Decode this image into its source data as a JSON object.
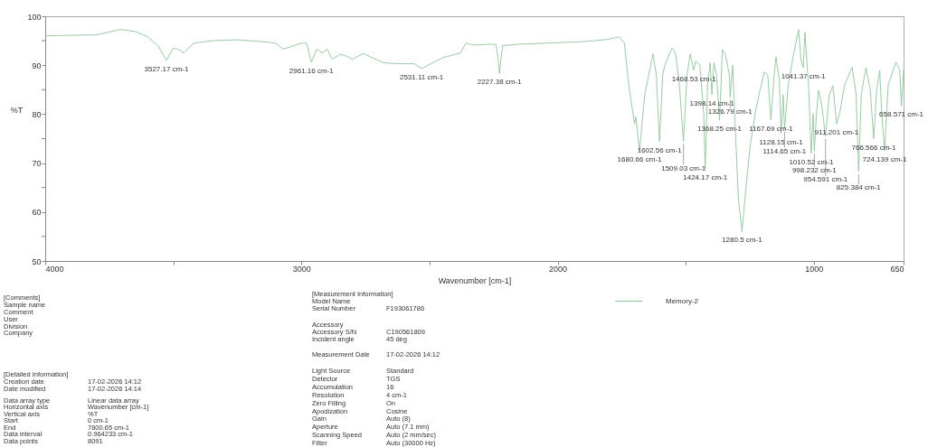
{
  "chart_data": {
    "type": "line",
    "xlabel": "Wavenumber [cm-1]",
    "ylabel": "%T",
    "xlim": [
      4000,
      650
    ],
    "xticks": [
      4000,
      {
        "value": 3500,
        "label": null
      },
      3000,
      {
        "value": 2500,
        "label": null
      },
      2000,
      {
        "value": 1500,
        "label": null
      },
      1000,
      650
    ],
    "ylim": [
      50,
      100
    ],
    "yticks": [
      50,
      {
        "value": 55,
        "label": null
      },
      60,
      {
        "value": 65,
        "label": null
      },
      70,
      {
        "value": 75,
        "label": null
      },
      80,
      {
        "value": 85,
        "label": null
      },
      90,
      {
        "value": 95,
        "label": null
      },
      100
    ],
    "grid": false,
    "legend": "bottom",
    "marker": "none",
    "line_style": "solid",
    "series": [
      {
        "name": "Memory-2",
        "color": "#8fc49a",
        "x": [
          4000,
          3900,
          3800,
          3750,
          3707,
          3650,
          3600,
          3560,
          3527.17,
          3500,
          3480,
          3460,
          3420,
          3350,
          3250,
          3150,
          3100,
          3071,
          3000,
          2980,
          2961.16,
          2940,
          2920,
          2900,
          2880,
          2850,
          2830,
          2800,
          2760,
          2680,
          2620,
          2560,
          2531.11,
          2450,
          2380,
          2358,
          2330,
          2260,
          2240,
          2232,
          2227.38,
          2222,
          2215,
          2150,
          2000,
          1900,
          1800,
          1760,
          1740,
          1720,
          1700,
          1695,
          1680.66,
          1660,
          1628,
          1615,
          1602.56,
          1590,
          1582,
          1554,
          1540,
          1525,
          1509.03,
          1495,
          1483,
          1468.53,
          1462,
          1445,
          1430,
          1424.17,
          1415,
          1405,
          1398.14,
          1390,
          1380,
          1368.25,
          1357,
          1345,
          1330,
          1326.79,
          1317,
          1305,
          1295,
          1280.5,
          1265,
          1250,
          1230,
          1210,
          1194,
          1180,
          1167.69,
          1155,
          1148,
          1135,
          1128.15,
          1120,
          1114.65,
          1100,
          1080,
          1060,
          1050,
          1041.37,
          1035,
          1020,
          1010.52,
          1003,
          998.232,
          990,
          982,
          970,
          954.591,
          940,
          926,
          911.201,
          900,
          880,
          851,
          835,
          825.384,
          815,
          797,
          780,
          766.566,
          755,
          743,
          735,
          724.139,
          710,
          680,
          665,
          658.571,
          650
        ],
        "values": [
          96,
          96.1,
          96.2,
          96.8,
          97.3,
          96.9,
          95.8,
          94,
          91,
          93.5,
          93.2,
          92.5,
          94.5,
          95,
          95.2,
          94.8,
          94.5,
          93.3,
          94.5,
          94.5,
          90.6,
          93.3,
          92.5,
          93.3,
          91.2,
          92.2,
          92,
          91.2,
          92.4,
          90.5,
          90.3,
          90.3,
          89.3,
          91.5,
          92.5,
          94.5,
          94.1,
          94.3,
          94.2,
          91,
          88.3,
          91,
          94,
          94.3,
          94.6,
          94.8,
          95.3,
          95.8,
          94.5,
          85,
          78,
          79.5,
          72.5,
          84,
          92.3,
          88,
          74.4,
          88,
          90,
          93.5,
          92.5,
          86,
          74.5,
          88,
          92.3,
          89,
          90.8,
          90,
          80,
          68.8,
          86,
          90.5,
          84,
          90.5,
          88,
          78.8,
          93.2,
          92,
          88,
          83.5,
          90,
          75,
          63,
          56,
          65,
          73,
          80,
          85,
          88.6,
          88,
          78.8,
          88,
          91.7,
          87,
          76,
          84,
          77,
          86,
          92,
          97.3,
          91,
          89.5,
          96.7,
          85,
          72,
          80,
          72.5,
          80,
          84.9,
          82,
          75.5,
          84,
          85.8,
          78,
          80,
          86,
          89.6,
          84,
          68.3,
          84,
          89.5,
          85,
          75,
          85,
          88.9,
          80,
          72.5,
          86,
          90.6,
          89,
          81.7,
          89
        ]
      }
    ],
    "annotations": [
      {
        "text": "3527.17 cm-1",
        "x": 3527.17,
        "y": 91
      },
      {
        "text": "2961.16 cm-1",
        "x": 2961.16,
        "y": 90.6
      },
      {
        "text": "2531.11 cm-1",
        "x": 2531.11,
        "y": 89.3
      },
      {
        "text": "2227.38 cm-1",
        "x": 2227.38,
        "y": 88.3
      },
      {
        "text": "1680.66 cm-1",
        "x": 1680.66,
        "y": 72.5
      },
      {
        "text": "1602.56 cm-1",
        "x": 1602.56,
        "y": 74.4
      },
      {
        "text": "1509.03 cm-1",
        "x": 1509.03,
        "y": 74.5
      },
      {
        "text": "1468.53 cm-1",
        "x": 1468.53,
        "y": 89
      },
      {
        "text": "1424.17 cm-1",
        "x": 1424.17,
        "y": 68.8
      },
      {
        "text": "1398.14 cm-1",
        "x": 1398.14,
        "y": 84
      },
      {
        "text": "1368.25 cm-1",
        "x": 1368.25,
        "y": 78.8
      },
      {
        "text": "1326.79 cm-1",
        "x": 1326.79,
        "y": 83.5
      },
      {
        "text": "1280.5 cm-1",
        "x": 1280.5,
        "y": 56
      },
      {
        "text": "1167.69 cm-1",
        "x": 1167.69,
        "y": 78.8
      },
      {
        "text": "1128.15 cm-1",
        "x": 1128.15,
        "y": 76
      },
      {
        "text": "1114.65 cm-1",
        "x": 1114.65,
        "y": 77
      },
      {
        "text": "1041.37 cm-1",
        "x": 1041.37,
        "y": 89.5
      },
      {
        "text": "1010.52 cm-1",
        "x": 1010.52,
        "y": 72
      },
      {
        "text": "998.232 cm-1",
        "x": 998.232,
        "y": 72.5
      },
      {
        "text": "954.591 cm-1",
        "x": 954.591,
        "y": 75.5
      },
      {
        "text": "911.201 cm-1",
        "x": 911.201,
        "y": 78
      },
      {
        "text": "825.384 cm-1",
        "x": 825.384,
        "y": 68.3
      },
      {
        "text": "766.566 cm-1",
        "x": 766.566,
        "y": 75
      },
      {
        "text": "724.139 cm-1",
        "x": 724.139,
        "y": 72.5
      },
      {
        "text": "658.571 cm-1",
        "x": 658.571,
        "y": 81.7
      },
      "[Comments]",
      "Sample name",
      "Comment",
      "User",
      "Division",
      "Company",
      "[Detailed Information]",
      "Creation date\t17-02-2026 14:12",
      "Date modified\t17-02-2026 14:14",
      "Data array type\tLinear data array",
      "Horizontal axis\tWavenumber [cm-1]",
      "Vertical axis\t%T",
      "Start\t0 cm-1",
      "End\t7800.65 cm-1",
      "Data interval\t0.964233 cm-1",
      "Data points\t8091",
      "[Measurement Information]",
      "Model Name",
      "Serial Number\tF193061786",
      "Accessory",
      "Accessory S/N\tC190561809",
      "Incident angle\t45 deg",
      "Measurement Date\t17-02-2026 14:12",
      "Light Source\tStandard",
      "Detector\tTGS",
      "Accumulation\t16",
      "Resolution\t4 cm-1",
      "Zero Filling\tOn",
      "Apodization\tCosine",
      "Gain\tAuto (8)",
      "Aperture\tAuto (7.1 mm)",
      "Scanning Speed\tAuto (2 mm/sec)",
      "Filter\tAuto (30000 Hz)"
    ]
  }
}
